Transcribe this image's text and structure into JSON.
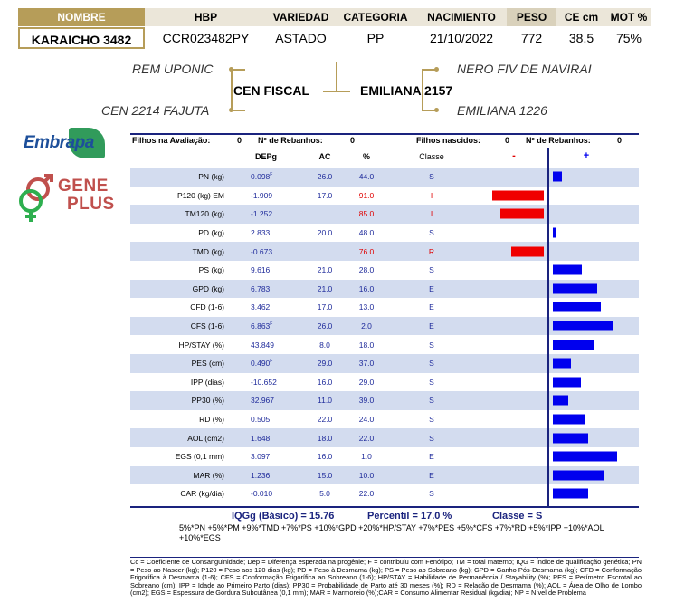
{
  "header": {
    "labels": {
      "nome": "NOMBRE",
      "hbp": "HBP",
      "variedade": "VARIEDAD",
      "categoria": "CATEGORIA",
      "nascimento": "NACIMIENTO",
      "peso": "PESO",
      "ce": "CE cm",
      "mot": "MOT %"
    },
    "values": {
      "nome": "KARAICHO 3482",
      "hbp": "CCR023482PY",
      "variedade": "ASTADO",
      "categoria": "PP",
      "nascimento": "21/10/2022",
      "peso": "772",
      "ce": "38.5",
      "mot": "75%"
    }
  },
  "pedigree": {
    "sire": "CEN FISCAL",
    "dam": "EMILIANA 2157",
    "sire_sire": "REM UPONIC",
    "sire_dam": "CEN 2214 FAJUTA",
    "dam_sire": "NERO FIV DE NAVIRAI",
    "dam_dam": "EMILIANA 1226"
  },
  "logos": {
    "embrapa": "Embrapa",
    "gene": "GENE",
    "plus": "PLUS"
  },
  "summary": {
    "filhos_avaliacao_label": "Filhos na Avaliação:",
    "filhos_avaliacao_value": "0",
    "rebanhos_label_1": "Nº de Rebanhos:",
    "rebanhos_value_1": "0",
    "filhos_nascidos_label": "Filhos nascidos:",
    "filhos_nascidos_value": "0",
    "rebanhos_label_2": "Nº de Rebanhos:",
    "rebanhos_value_2": "0"
  },
  "columns": {
    "dep": "DEPg",
    "ac": "AC",
    "pct": "%",
    "classe": "Classe",
    "neg": "-",
    "pos": "+"
  },
  "traits": [
    {
      "label": "PN (kg)",
      "dep": "0.098",
      "sup": "F",
      "ac": "26.0",
      "pct": "44.0",
      "cls": "S",
      "red": false,
      "bar": 0.12
    },
    {
      "label": "P120 (kg) EM",
      "dep": "-1.909",
      "sup": "",
      "ac": "17.0",
      "pct": "91.0",
      "cls": "I",
      "red": true,
      "bar": -0.67
    },
    {
      "label": "TM120 (kg)",
      "dep": "-1.252",
      "sup": "",
      "ac": "",
      "pct": "85.0",
      "cls": "I",
      "red": true,
      "bar": -0.56
    },
    {
      "label": "PD (kg)",
      "dep": "2.833",
      "sup": "",
      "ac": "20.0",
      "pct": "48.0",
      "cls": "S",
      "red": false,
      "bar": 0.05
    },
    {
      "label": "TMD (kg)",
      "dep": "-0.673",
      "sup": "",
      "ac": "",
      "pct": "76.0",
      "cls": "R",
      "red": true,
      "bar": -0.42
    },
    {
      "label": "PS (kg)",
      "dep": "9.616",
      "sup": "",
      "ac": "21.0",
      "pct": "28.0",
      "cls": "S",
      "red": false,
      "bar": 0.38
    },
    {
      "label": "GPD (kg)",
      "dep": "6.783",
      "sup": "",
      "ac": "21.0",
      "pct": "16.0",
      "cls": "E",
      "red": false,
      "bar": 0.58
    },
    {
      "label": "CFD (1-6)",
      "dep": "3.462",
      "sup": "",
      "ac": "17.0",
      "pct": "13.0",
      "cls": "E",
      "red": false,
      "bar": 0.63
    },
    {
      "label": "CFS (1-6)",
      "dep": "6.863",
      "sup": "F",
      "ac": "26.0",
      "pct": "2.0",
      "cls": "E",
      "red": false,
      "bar": 0.8
    },
    {
      "label": "HP/STAY (%)",
      "dep": "43.849",
      "sup": "",
      "ac": "8.0",
      "pct": "18.0",
      "cls": "S",
      "red": false,
      "bar": 0.55
    },
    {
      "label": "PES (cm)",
      "dep": "0.490",
      "sup": "F",
      "ac": "29.0",
      "pct": "37.0",
      "cls": "S",
      "red": false,
      "bar": 0.24
    },
    {
      "label": "IPP (dias)",
      "dep": "-10.652",
      "sup": "",
      "ac": "16.0",
      "pct": "29.0",
      "cls": "S",
      "red": false,
      "bar": 0.37
    },
    {
      "label": "PP30 (%)",
      "dep": "32.967",
      "sup": "",
      "ac": "11.0",
      "pct": "39.0",
      "cls": "S",
      "red": false,
      "bar": 0.2
    },
    {
      "label": "RD (%)",
      "dep": "0.505",
      "sup": "",
      "ac": "22.0",
      "pct": "24.0",
      "cls": "S",
      "red": false,
      "bar": 0.42
    },
    {
      "label": "AOL (cm2)",
      "dep": "1.648",
      "sup": "",
      "ac": "18.0",
      "pct": "22.0",
      "cls": "S",
      "red": false,
      "bar": 0.47
    },
    {
      "label": "EGS (0,1 mm)",
      "dep": "3.097",
      "sup": "",
      "ac": "16.0",
      "pct": "1.0",
      "cls": "E",
      "red": false,
      "bar": 0.85
    },
    {
      "label": "MAR (%)",
      "dep": "1.236",
      "sup": "",
      "ac": "15.0",
      "pct": "10.0",
      "cls": "E",
      "red": false,
      "bar": 0.68
    },
    {
      "label": "CAR (kg/dia)",
      "dep": "-0.010",
      "sup": "",
      "ac": "5.0",
      "pct": "22.0",
      "cls": "S",
      "red": false,
      "bar": 0.47
    }
  ],
  "iqg": {
    "iqg_label": "IQGg (Básico) = 15.76",
    "percentil_label": "Percentil = 17.0 %",
    "classe_label": "Classe = S",
    "formula": "5%*PN +5%*PM +9%*TMD +7%*PS +10%*GPD +20%*HP/STAY +7%*PES +5%*CFS +7%*RD +5%*IPP +10%*AOL +10%*EGS"
  },
  "legend": "Cc = Coeficiente de Consanguinidade; Dep = Diferença esperada na progênie; F = contribuiu com Fenótipo; TM = total materno; IQG = Índice de qualificação genética; PN = Peso ao Nascer (kg); P120 = Peso aos 120 dias (kg); PD = Peso à Desmama (kg); PS = Peso ao Sobreano (kg); GPD = Ganho Pós-Desmama (kg); CFD = Conformação Frigorífica à Desmama (1-6); CFS = Conformação Frigorífica ao Sobreano (1-6); HP/STAY = Habilidade de Permanência / Stayability (%); PES = Perímetro Escrotal ao Sobreano (cm); IPP = Idade ao Primeiro Parto (dias); PP30 = Probabilidade de Parto até 30 meses (%); RD = Relação de Desmama (%); AOL = Área de Olho de Lombo (cm2); EGS = Espessura de Gordura Subcutânea (0,1 mm); MAR = Marmoreio (%);CAR = Consumo Alimentar Residual (kg/dia); NP = Nível de Problema",
  "colors": {
    "gold": "#b69d59",
    "navy": "#1a237e",
    "row_alt": "#d3dcef",
    "bar_pos": "#0000ee",
    "bar_neg": "#f00000"
  }
}
